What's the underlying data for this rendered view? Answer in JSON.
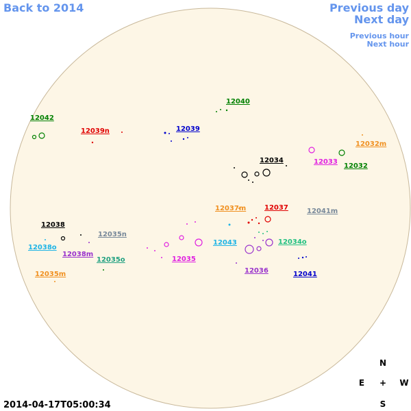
{
  "navigation": {
    "back": "Back to 2014",
    "previous_day": "Previous day",
    "next_day": "Next day",
    "previous_hour": "Previous hour",
    "next_hour": "Next hour"
  },
  "regions": [
    {
      "label": "12040"
    },
    {
      "label": "12042"
    },
    {
      "label": "12039n"
    },
    {
      "label": "12039"
    },
    {
      "label": "12032m"
    },
    {
      "label": "12033"
    },
    {
      "label": "12032"
    },
    {
      "label": "12034"
    },
    {
      "label": "12037m"
    },
    {
      "label": "12037"
    },
    {
      "label": "12041m"
    },
    {
      "label": "12038"
    },
    {
      "label": "12035n"
    },
    {
      "label": "12043"
    },
    {
      "label": "12034o"
    },
    {
      "label": "12038o"
    },
    {
      "label": "12038m"
    },
    {
      "label": "12035o"
    },
    {
      "label": "12035"
    },
    {
      "label": "12036"
    },
    {
      "label": "12041"
    },
    {
      "label": "12035m"
    }
  ],
  "compass": {
    "north": "N",
    "east": "E",
    "center": "+",
    "west": "W",
    "south": "S"
  },
  "timestamp": "2014-04-17T05:00:34"
}
